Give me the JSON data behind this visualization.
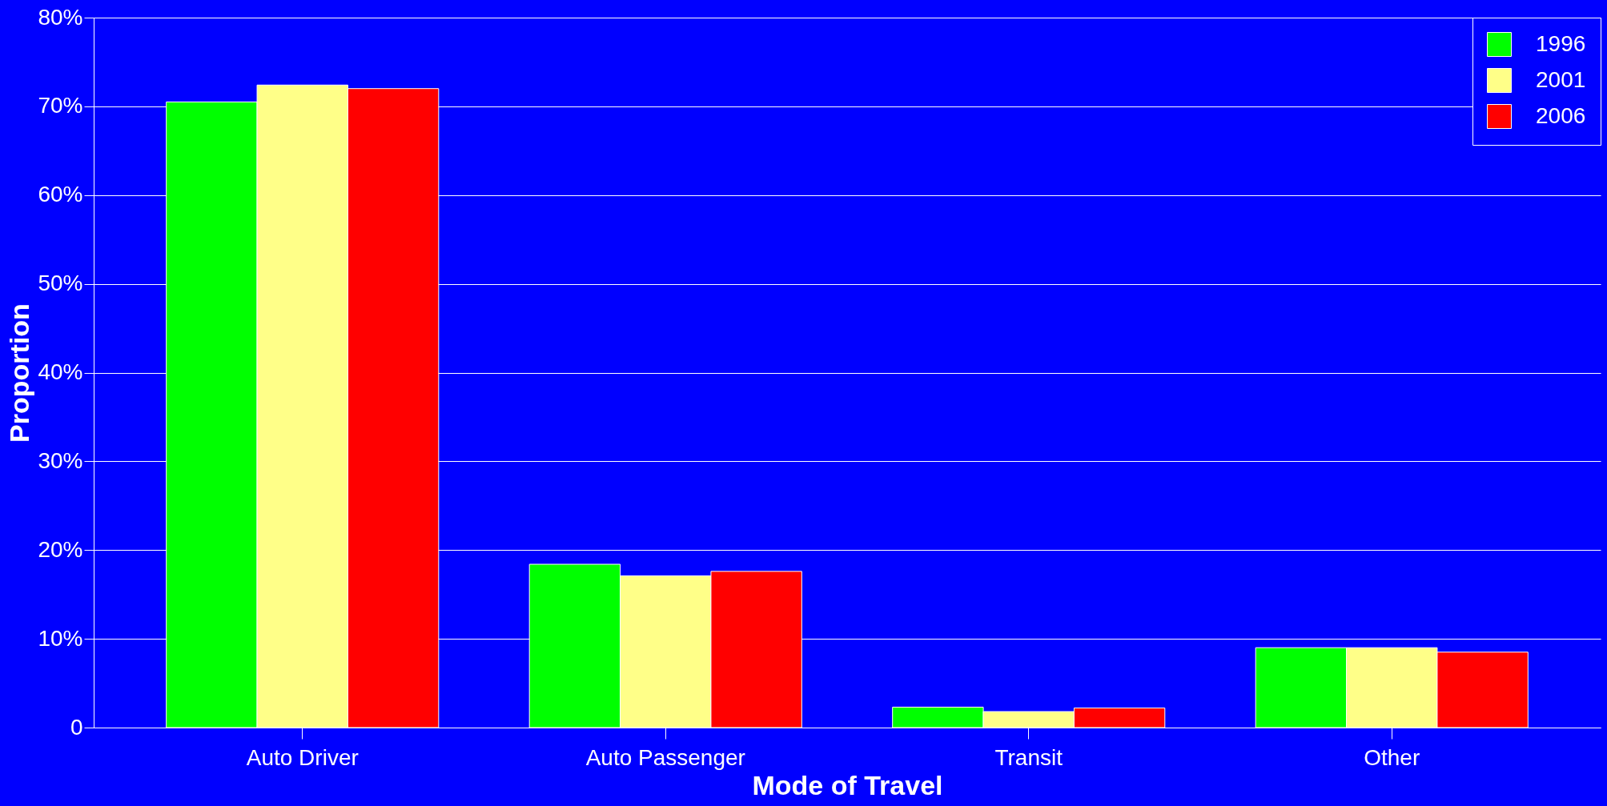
{
  "chart_data": {
    "type": "bar",
    "xlabel": "Mode of Travel",
    "ylabel": "Proportion",
    "categories": [
      "Auto Driver",
      "Auto Passenger",
      "Transit",
      "Other"
    ],
    "series": [
      {
        "name": "1996",
        "color": "#00ff00",
        "values": [
          70.5,
          18.4,
          2.3,
          9.0
        ]
      },
      {
        "name": "2001",
        "color": "#ffff88",
        "values": [
          72.4,
          17.1,
          1.8,
          9.0
        ]
      },
      {
        "name": "2006",
        "color": "#ff0000",
        "values": [
          72.0,
          17.6,
          2.2,
          8.5
        ]
      }
    ],
    "ylim": [
      0,
      80
    ],
    "yticks": [
      0,
      {
        "value": 10,
        "label": "10%"
      },
      {
        "value": 20,
        "label": "20%"
      },
      {
        "value": 30,
        "label": "30%"
      },
      {
        "value": 40,
        "label": "40%"
      },
      {
        "value": 50,
        "label": "50%"
      },
      {
        "value": 60,
        "label": "60%"
      },
      {
        "value": 70,
        "label": "70%"
      },
      {
        "value": 80,
        "label": "80%"
      }
    ],
    "grid": "y",
    "legend": "top right"
  }
}
